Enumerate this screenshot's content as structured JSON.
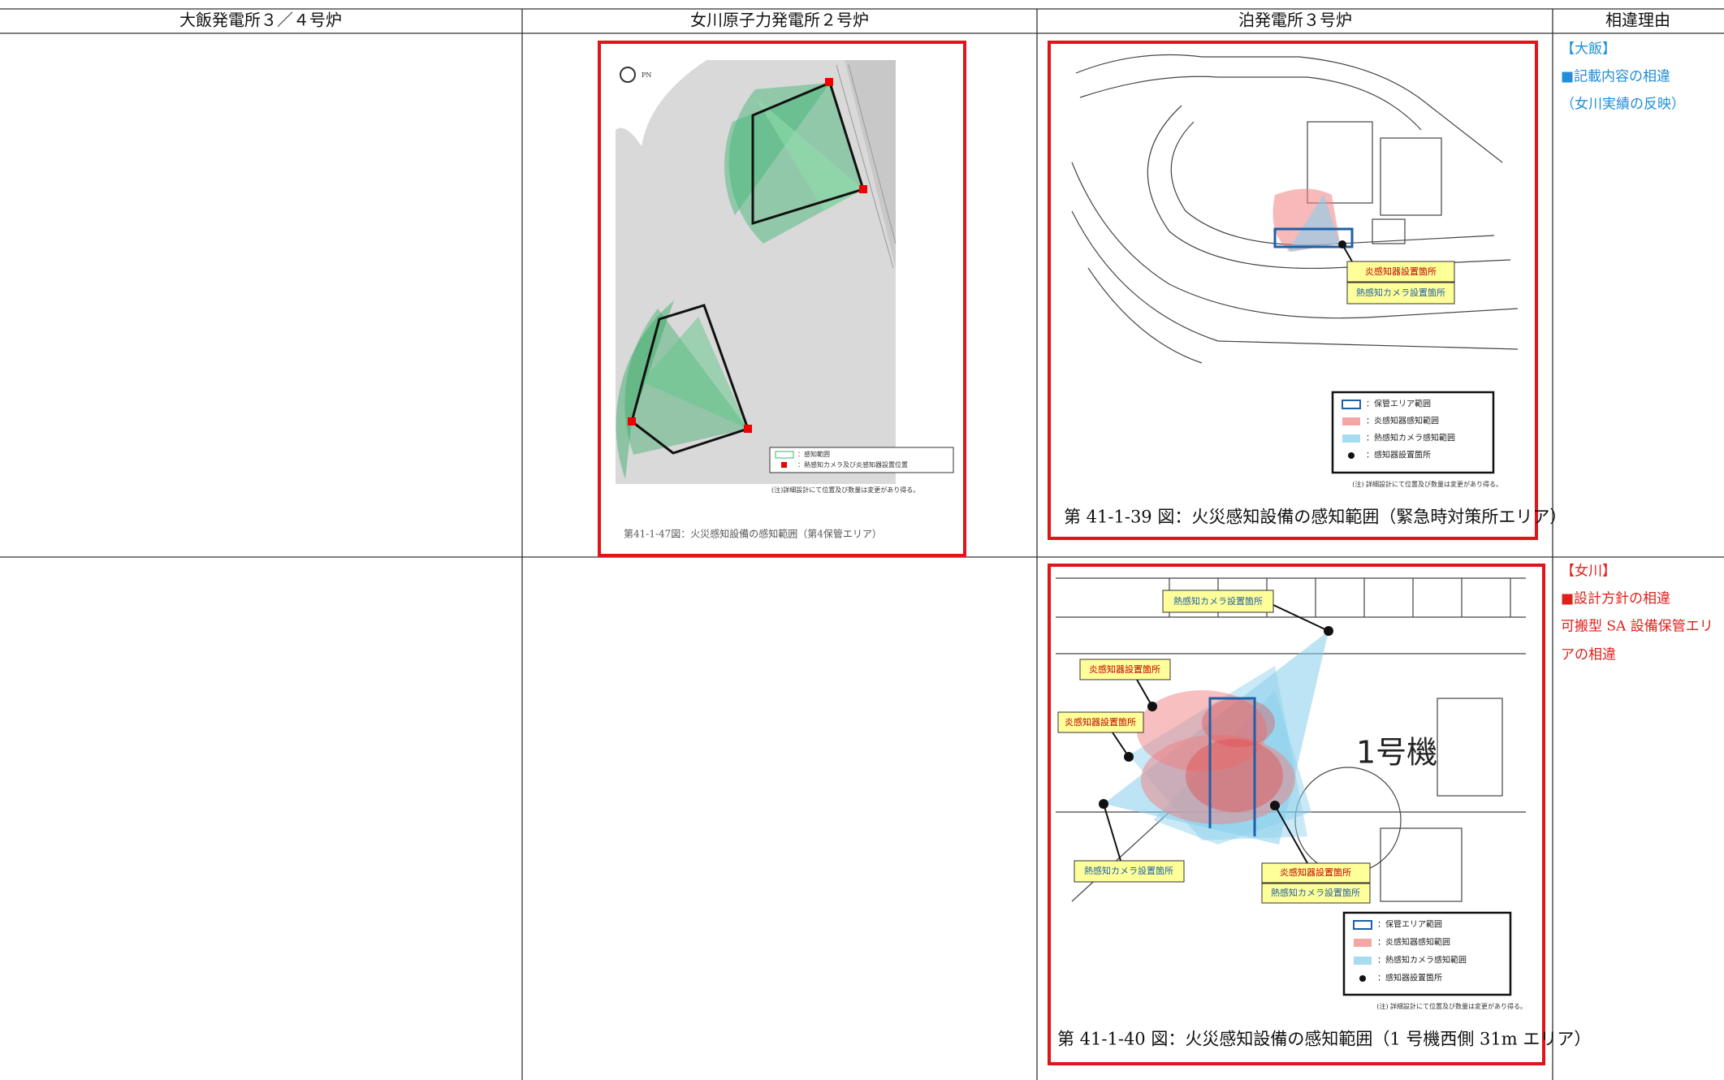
{
  "table": {
    "columns": [
      "大飯発電所３／４号炉",
      "女川原子力発電所２号炉",
      "泊発電所３号炉",
      "相違理由"
    ]
  },
  "onagawa_figure": {
    "north": "PN",
    "legend": [
      "：感知範囲",
      "：熱感知カメラ及び炎感知器設置位置"
    ],
    "note": "(注)詳細設計にて位置及び数量は変更があり得る。",
    "caption": "第41-1-47図：火災感知設備の感知範囲（第4保管エリア）"
  },
  "tomari_figures": [
    {
      "labels": [
        "炎感知器設置箇所",
        "熱感知カメラ設置箇所"
      ],
      "legend": [
        "：保管エリア範囲",
        "：炎感知器感知範囲",
        "：熱感知カメラ感知範囲",
        "：感知器設置箇所"
      ],
      "note": "(注) 詳細設計にて位置及び数量は変更があり得る。",
      "caption": "第 41-1-39 図：火災感知設備の感知範囲（緊急時対策所エリア）"
    },
    {
      "labels": [
        "熱感知カメラ設置箇所",
        "炎感知器設置箇所",
        "炎感知器設置箇所",
        "熱感知カメラ設置箇所",
        "炎感知器設置箇所",
        "熱感知カメラ設置箇所"
      ],
      "unit": "1号機",
      "legend": [
        "：保管エリア範囲",
        "：炎感知器感知範囲",
        "：熱感知カメラ感知範囲",
        "：感知器設置箇所"
      ],
      "note": "(注) 詳細設計にて位置及び数量は変更があり得る。",
      "caption": "第 41-1-40 図：火災感知設備の感知範囲（1 号機西側 31m エリア）"
    }
  ],
  "reasons": [
    {
      "plant": "【大飯】",
      "lines": [
        "■記載内容の相違",
        "（女川実績の反映）"
      ]
    },
    {
      "plant": "【女川】",
      "lines": [
        "■設計方針の相違",
        "可搬型 SA 設備保管エリ",
        "アの相違"
      ]
    }
  ]
}
